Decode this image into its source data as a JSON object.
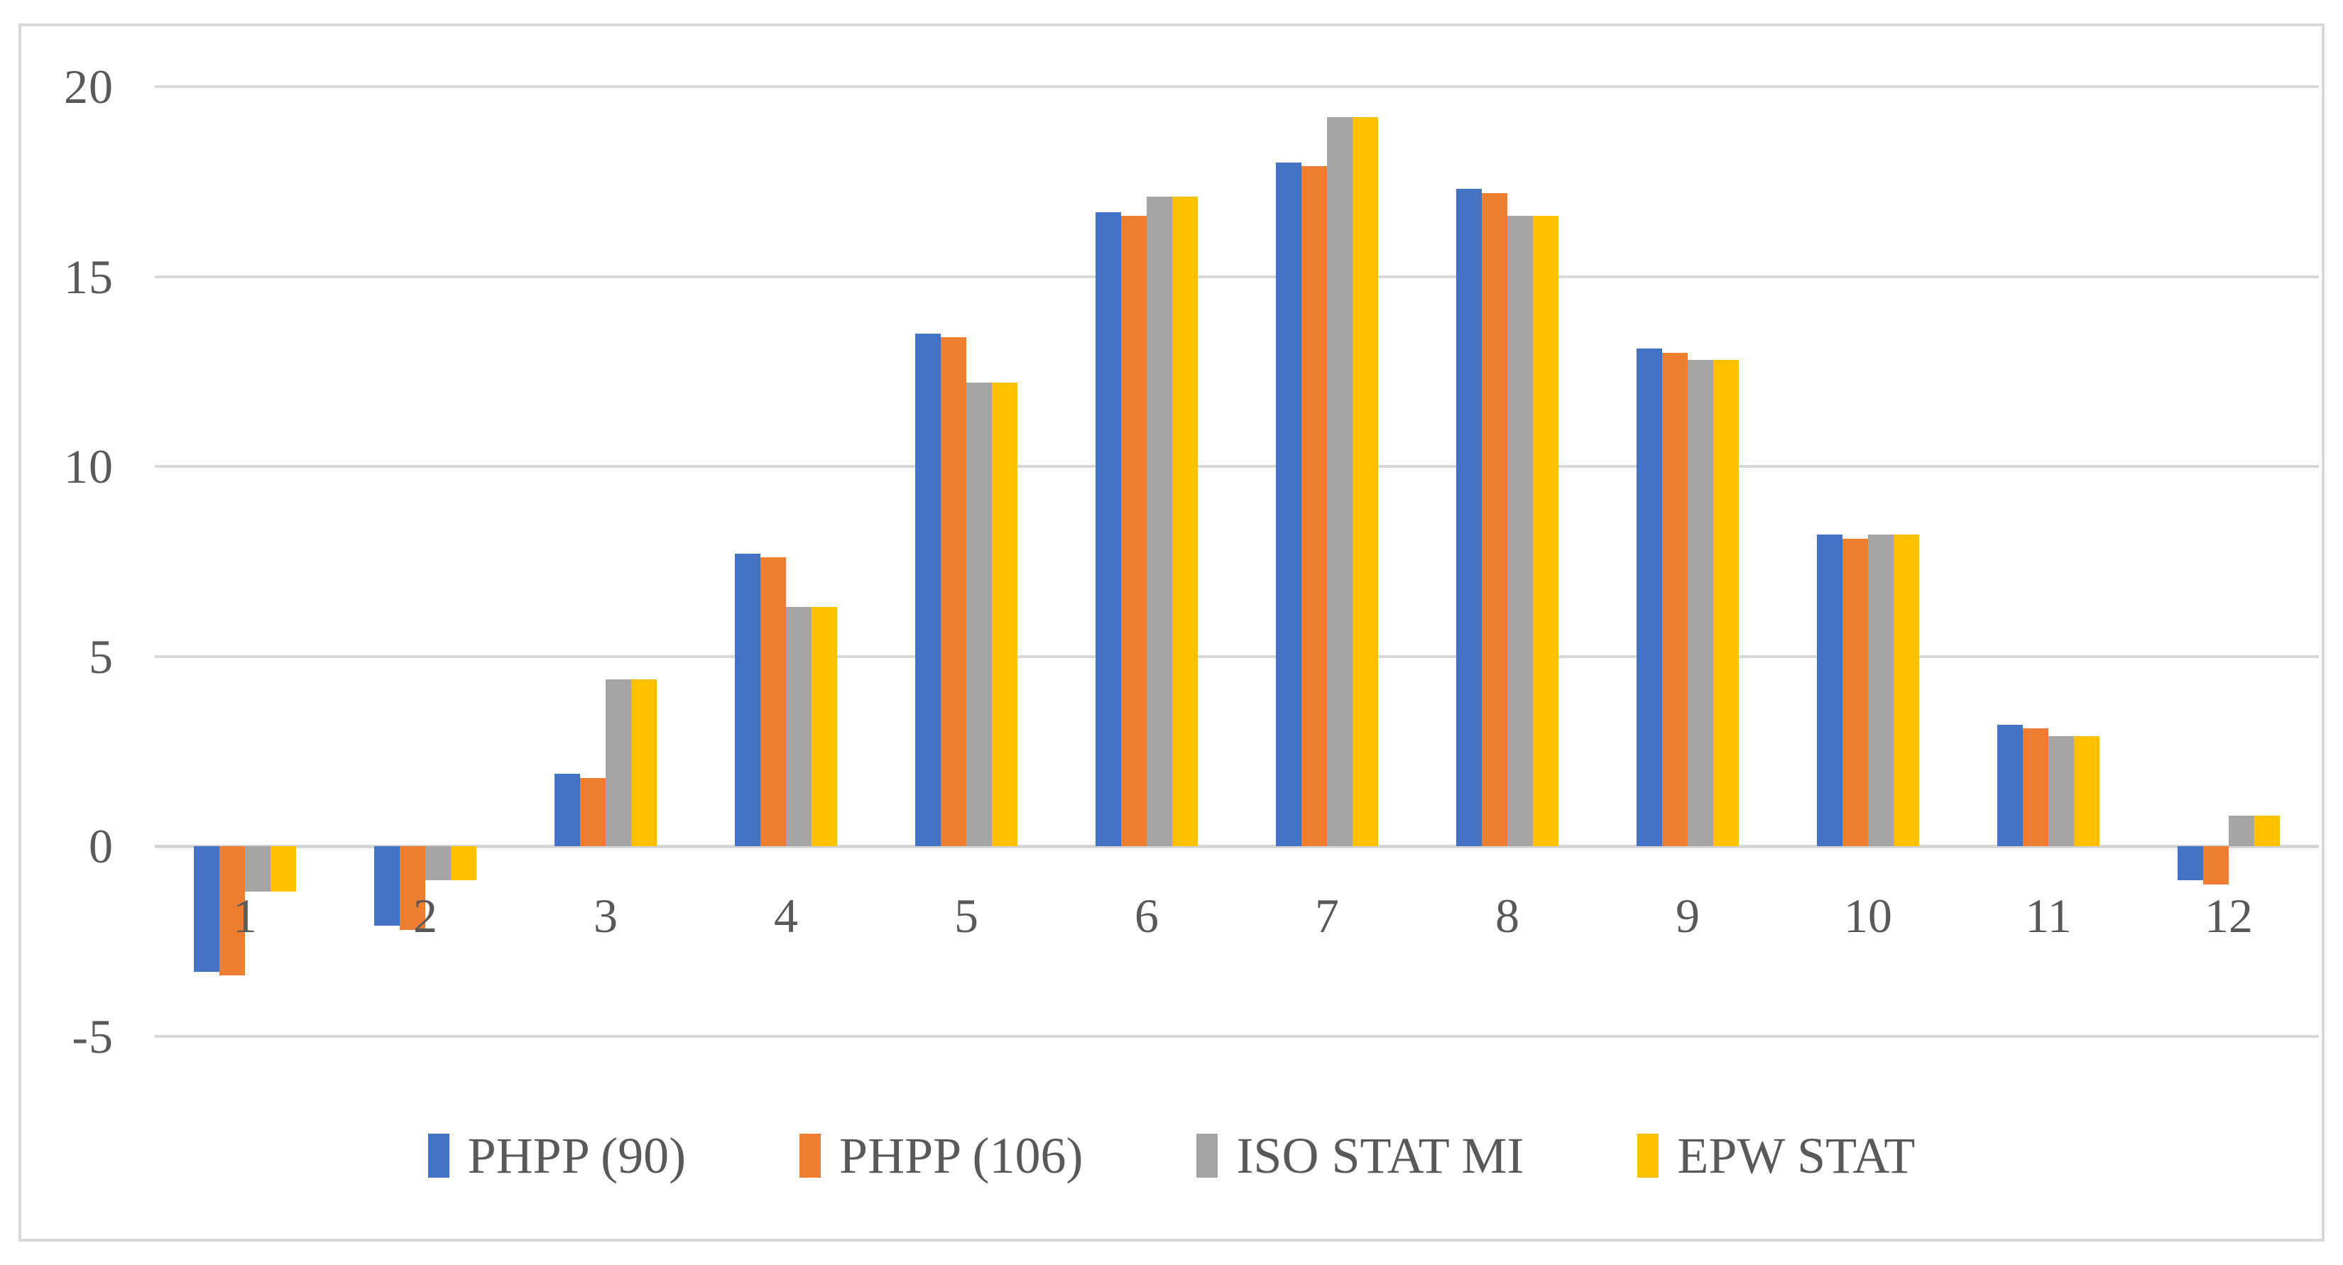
{
  "chart_data": {
    "type": "bar",
    "title": "",
    "xlabel": "",
    "ylabel": "",
    "categories": [
      "1",
      "2",
      "3",
      "4",
      "5",
      "6",
      "7",
      "8",
      "9",
      "10",
      "11",
      "12"
    ],
    "series": [
      {
        "name": "PHPP (90)",
        "color": "#4472C4",
        "values": [
          -3.3,
          -2.1,
          1.9,
          7.7,
          13.5,
          16.7,
          18.0,
          17.3,
          13.1,
          8.2,
          3.2,
          -0.9
        ]
      },
      {
        "name": "PHPP (106)",
        "color": "#ED7D31",
        "values": [
          -3.4,
          -2.2,
          1.8,
          7.6,
          13.4,
          16.6,
          17.9,
          17.2,
          13.0,
          8.1,
          3.1,
          -1.0
        ]
      },
      {
        "name": "ISO STAT MI",
        "color": "#A5A5A5",
        "values": [
          -1.2,
          -0.9,
          4.4,
          6.3,
          12.2,
          17.1,
          19.2,
          16.6,
          12.8,
          8.2,
          2.9,
          0.8
        ]
      },
      {
        "name": "EPW STAT",
        "color": "#FFC000",
        "values": [
          -1.2,
          -0.9,
          4.4,
          6.3,
          12.2,
          17.1,
          19.2,
          16.6,
          12.8,
          8.2,
          2.9,
          0.8
        ]
      }
    ],
    "y_axis": {
      "min": -5,
      "max": 20,
      "step": 5,
      "tick_labels": [
        "20",
        "15",
        "10",
        "5",
        "0",
        "-5"
      ]
    },
    "grid": true,
    "legend_position": "bottom",
    "plot_colors": {
      "gridline": "#d9d9d9",
      "axis_text": "#595959",
      "frame_border": "#d9d9d9",
      "background": "#ffffff"
    }
  }
}
